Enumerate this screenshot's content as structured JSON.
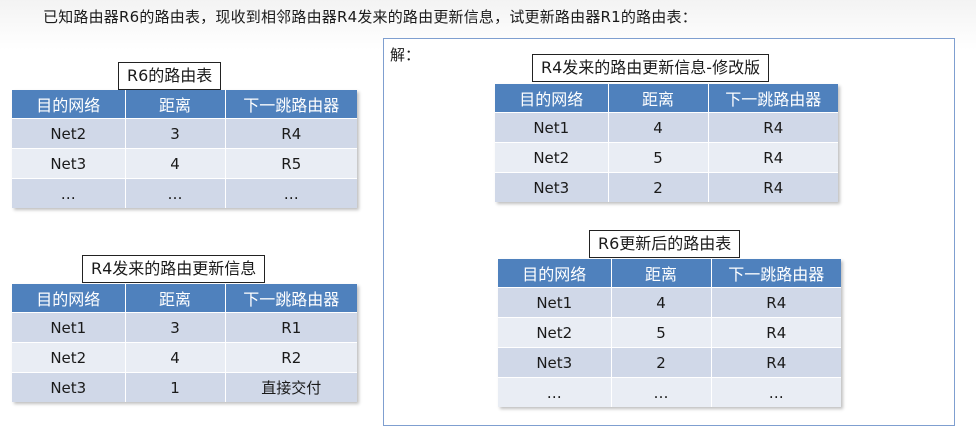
{
  "question": "已知路由器R6的路由表，现收到相邻路由器R4发来的路由更新信息，试更新路由器R1的路由表：",
  "answer_label": "解：",
  "tables": [
    {
      "caption": "R6的路由表",
      "headers": [
        "目的网络",
        "距离",
        "下一跳路由器"
      ],
      "rows": [
        [
          "Net2",
          "3",
          "R4"
        ],
        [
          "Net3",
          "4",
          "R5"
        ],
        [
          "…",
          "…",
          "…"
        ]
      ]
    },
    {
      "caption": "R4发来的路由更新信息",
      "headers": [
        "目的网络",
        "距离",
        "下一跳路由器"
      ],
      "rows": [
        [
          "Net1",
          "3",
          "R1"
        ],
        [
          "Net2",
          "4",
          "R2"
        ],
        [
          "Net3",
          "1",
          "直接交付"
        ]
      ]
    },
    {
      "caption": "R4发来的路由更新信息-修改版",
      "headers": [
        "目的网络",
        "距离",
        "下一跳路由器"
      ],
      "rows": [
        [
          "Net1",
          "4",
          "R4"
        ],
        [
          "Net2",
          "5",
          "R4"
        ],
        [
          "Net3",
          "2",
          "R4"
        ]
      ]
    },
    {
      "caption": "R6更新后的路由表",
      "headers": [
        "目的网络",
        "距离",
        "下一跳路由器"
      ],
      "rows": [
        [
          "Net1",
          "4",
          "R4"
        ],
        [
          "Net2",
          "5",
          "R4"
        ],
        [
          "Net3",
          "2",
          "R4"
        ],
        [
          "…",
          "…",
          "…"
        ]
      ]
    }
  ]
}
